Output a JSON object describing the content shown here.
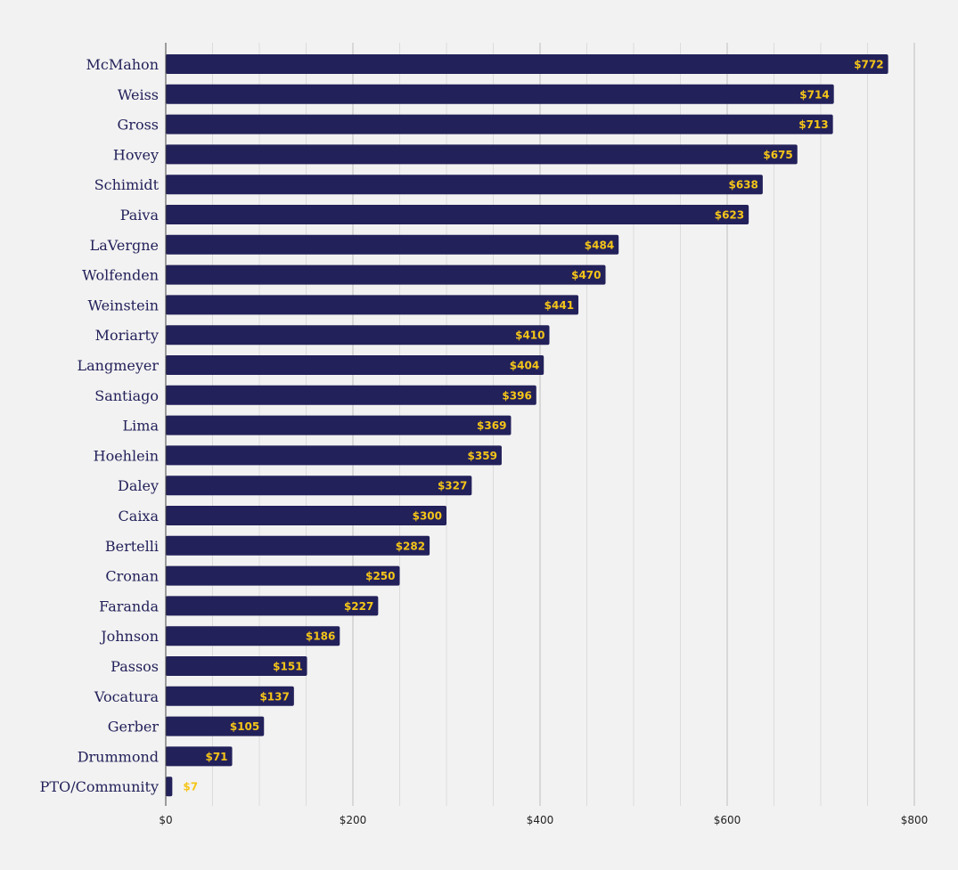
{
  "colors": {
    "background": "#f2f2f2",
    "bar": "#23215a",
    "value_label": "#f5c518",
    "category_label": "#23215a",
    "major_grid": "#bdbdbd",
    "minor_grid": "#dcdcdc"
  },
  "chart_data": {
    "type": "bar",
    "orientation": "horizontal",
    "title": "",
    "xlabel": "",
    "ylabel": "",
    "categories": [
      "McMahon",
      "Weiss",
      "Gross",
      "Hovey",
      "Schimidt",
      "Paiva",
      "LaVergne",
      "Wolfenden",
      "Weinstein",
      "Moriarty",
      "Langmeyer",
      "Santiago",
      "Lima",
      "Hoehlein",
      "Daley",
      "Caixa",
      "Bertelli",
      "Cronan",
      "Faranda",
      "Johnson",
      "Passos",
      "Vocatura",
      "Gerber",
      "Drummond",
      "PTO/Community"
    ],
    "values": [
      772,
      714,
      713,
      675,
      638,
      623,
      484,
      470,
      441,
      410,
      404,
      396,
      369,
      359,
      327,
      300,
      282,
      250,
      227,
      186,
      151,
      137,
      105,
      71,
      7
    ],
    "value_labels": [
      "$772",
      "$714",
      "$713",
      "$675",
      "$638",
      "$623",
      "$484",
      "$470",
      "$441",
      "$410",
      "$404",
      "$396",
      "$369",
      "$359",
      "$327",
      "$300",
      "$282",
      "$250",
      "$227",
      "$186",
      "$151",
      "$137",
      "$105",
      "$71",
      "$7"
    ],
    "xlim": [
      0,
      800
    ],
    "x_ticks": [
      0,
      200,
      400,
      600,
      800
    ],
    "x_tick_labels": [
      "$0",
      "$200",
      "$400",
      "$600",
      "$800"
    ],
    "minor_tick_step": 50,
    "grid": true,
    "legend": "none"
  }
}
